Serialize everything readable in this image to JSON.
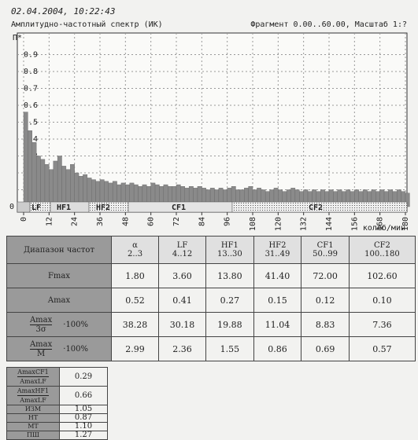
{
  "header": {
    "date": "02.04.2004, 10:22:43"
  },
  "chart_data": {
    "type": "bar",
    "title": "Амплитудно-частотный спектр (ИК)",
    "subtitle": "Фрагмент 0.00..60.00, Масштаб 1:?",
    "y_label": "П*",
    "x_label": "колеб/мин",
    "color": "#8a8a8a",
    "grid": true,
    "xlim": [
      0,
      180
    ],
    "xticks": [
      0,
      12,
      24,
      36,
      48,
      60,
      72,
      84,
      96,
      108,
      120,
      132,
      144,
      156,
      168,
      180
    ],
    "ylim": [
      0,
      1
    ],
    "yticks": [
      0,
      0.1,
      0.2,
      0.3,
      0.4,
      0.5,
      0.6,
      0.7,
      0.8,
      0.9
    ],
    "band_labels": [
      "LF",
      "HF1",
      "HF2",
      "CF1",
      "CF2"
    ],
    "x": [
      0,
      2,
      4,
      6,
      8,
      10,
      12,
      14,
      16,
      18,
      20,
      22,
      24,
      26,
      28,
      30,
      32,
      34,
      36,
      38,
      40,
      42,
      44,
      46,
      48,
      50,
      52,
      54,
      56,
      58,
      60,
      62,
      64,
      66,
      68,
      70,
      72,
      74,
      76,
      78,
      80,
      82,
      84,
      86,
      88,
      90,
      92,
      94,
      96,
      98,
      100,
      102,
      104,
      106,
      108,
      110,
      112,
      114,
      116,
      118,
      120,
      122,
      124,
      126,
      128,
      130,
      132,
      134,
      136,
      138,
      140,
      142,
      144,
      146,
      148,
      150,
      152,
      154,
      156,
      158,
      160,
      162,
      164,
      166,
      168,
      170,
      172,
      174,
      176,
      178,
      180
    ],
    "values": [
      0.56,
      0.45,
      0.38,
      0.3,
      0.28,
      0.25,
      0.22,
      0.27,
      0.3,
      0.24,
      0.22,
      0.25,
      0.2,
      0.18,
      0.19,
      0.17,
      0.16,
      0.15,
      0.16,
      0.15,
      0.14,
      0.15,
      0.13,
      0.14,
      0.13,
      0.14,
      0.13,
      0.12,
      0.13,
      0.12,
      0.14,
      0.13,
      0.12,
      0.13,
      0.12,
      0.12,
      0.13,
      0.12,
      0.11,
      0.12,
      0.11,
      0.12,
      0.11,
      0.1,
      0.11,
      0.1,
      0.11,
      0.1,
      0.11,
      0.12,
      0.1,
      0.1,
      0.11,
      0.12,
      0.1,
      0.11,
      0.1,
      0.09,
      0.1,
      0.11,
      0.1,
      0.09,
      0.1,
      0.11,
      0.1,
      0.09,
      0.1,
      0.09,
      0.1,
      0.09,
      0.1,
      0.09,
      0.1,
      0.09,
      0.1,
      0.09,
      0.1,
      0.09,
      0.1,
      0.09,
      0.1,
      0.09,
      0.1,
      0.09,
      0.1,
      0.09,
      0.1,
      0.09,
      0.1,
      0.09,
      0.08
    ]
  },
  "table": {
    "header": [
      "Диапазон частот",
      [
        "α",
        "2..3"
      ],
      [
        "LF",
        "4..12"
      ],
      [
        "HF1",
        "13..30"
      ],
      [
        "HF2",
        "31..49"
      ],
      [
        "CF1",
        "50..99"
      ],
      [
        "CF2",
        "100..180"
      ]
    ],
    "rows": [
      {
        "label": [
          "Fmax"
        ],
        "cells": [
          "1.80",
          "3.60",
          "13.80",
          "41.40",
          "72.00",
          "102.60"
        ]
      },
      {
        "label": [
          "Amax"
        ],
        "cells": [
          "0.52",
          "0.41",
          "0.27",
          "0.15",
          "0.12",
          "0.10"
        ]
      },
      {
        "label": [
          "Amax",
          "3σ",
          "·100%"
        ],
        "cells": [
          "38.28",
          "30.18",
          "19.88",
          "11.04",
          "8.83",
          "7.36"
        ]
      },
      {
        "label": [
          "Amax",
          "M",
          "·100%"
        ],
        "cells": [
          "2.99",
          "2.36",
          "1.55",
          "0.86",
          "0.69",
          "0.57"
        ]
      }
    ]
  },
  "ratios": {
    "rows": [
      {
        "label": [
          "AmaxCF1",
          "AmaxLF"
        ],
        "value": "0.29"
      },
      {
        "label": [
          "AmaxHF1",
          "AmaxLF"
        ],
        "value": "0.66"
      },
      {
        "label": [
          "ИЗМ"
        ],
        "value": "1.05"
      },
      {
        "label": [
          "НТ"
        ],
        "value": "0.87"
      },
      {
        "label": [
          "МТ"
        ],
        "value": "1.10"
      },
      {
        "label": [
          "ПШ"
        ],
        "value": "1.27"
      }
    ]
  }
}
